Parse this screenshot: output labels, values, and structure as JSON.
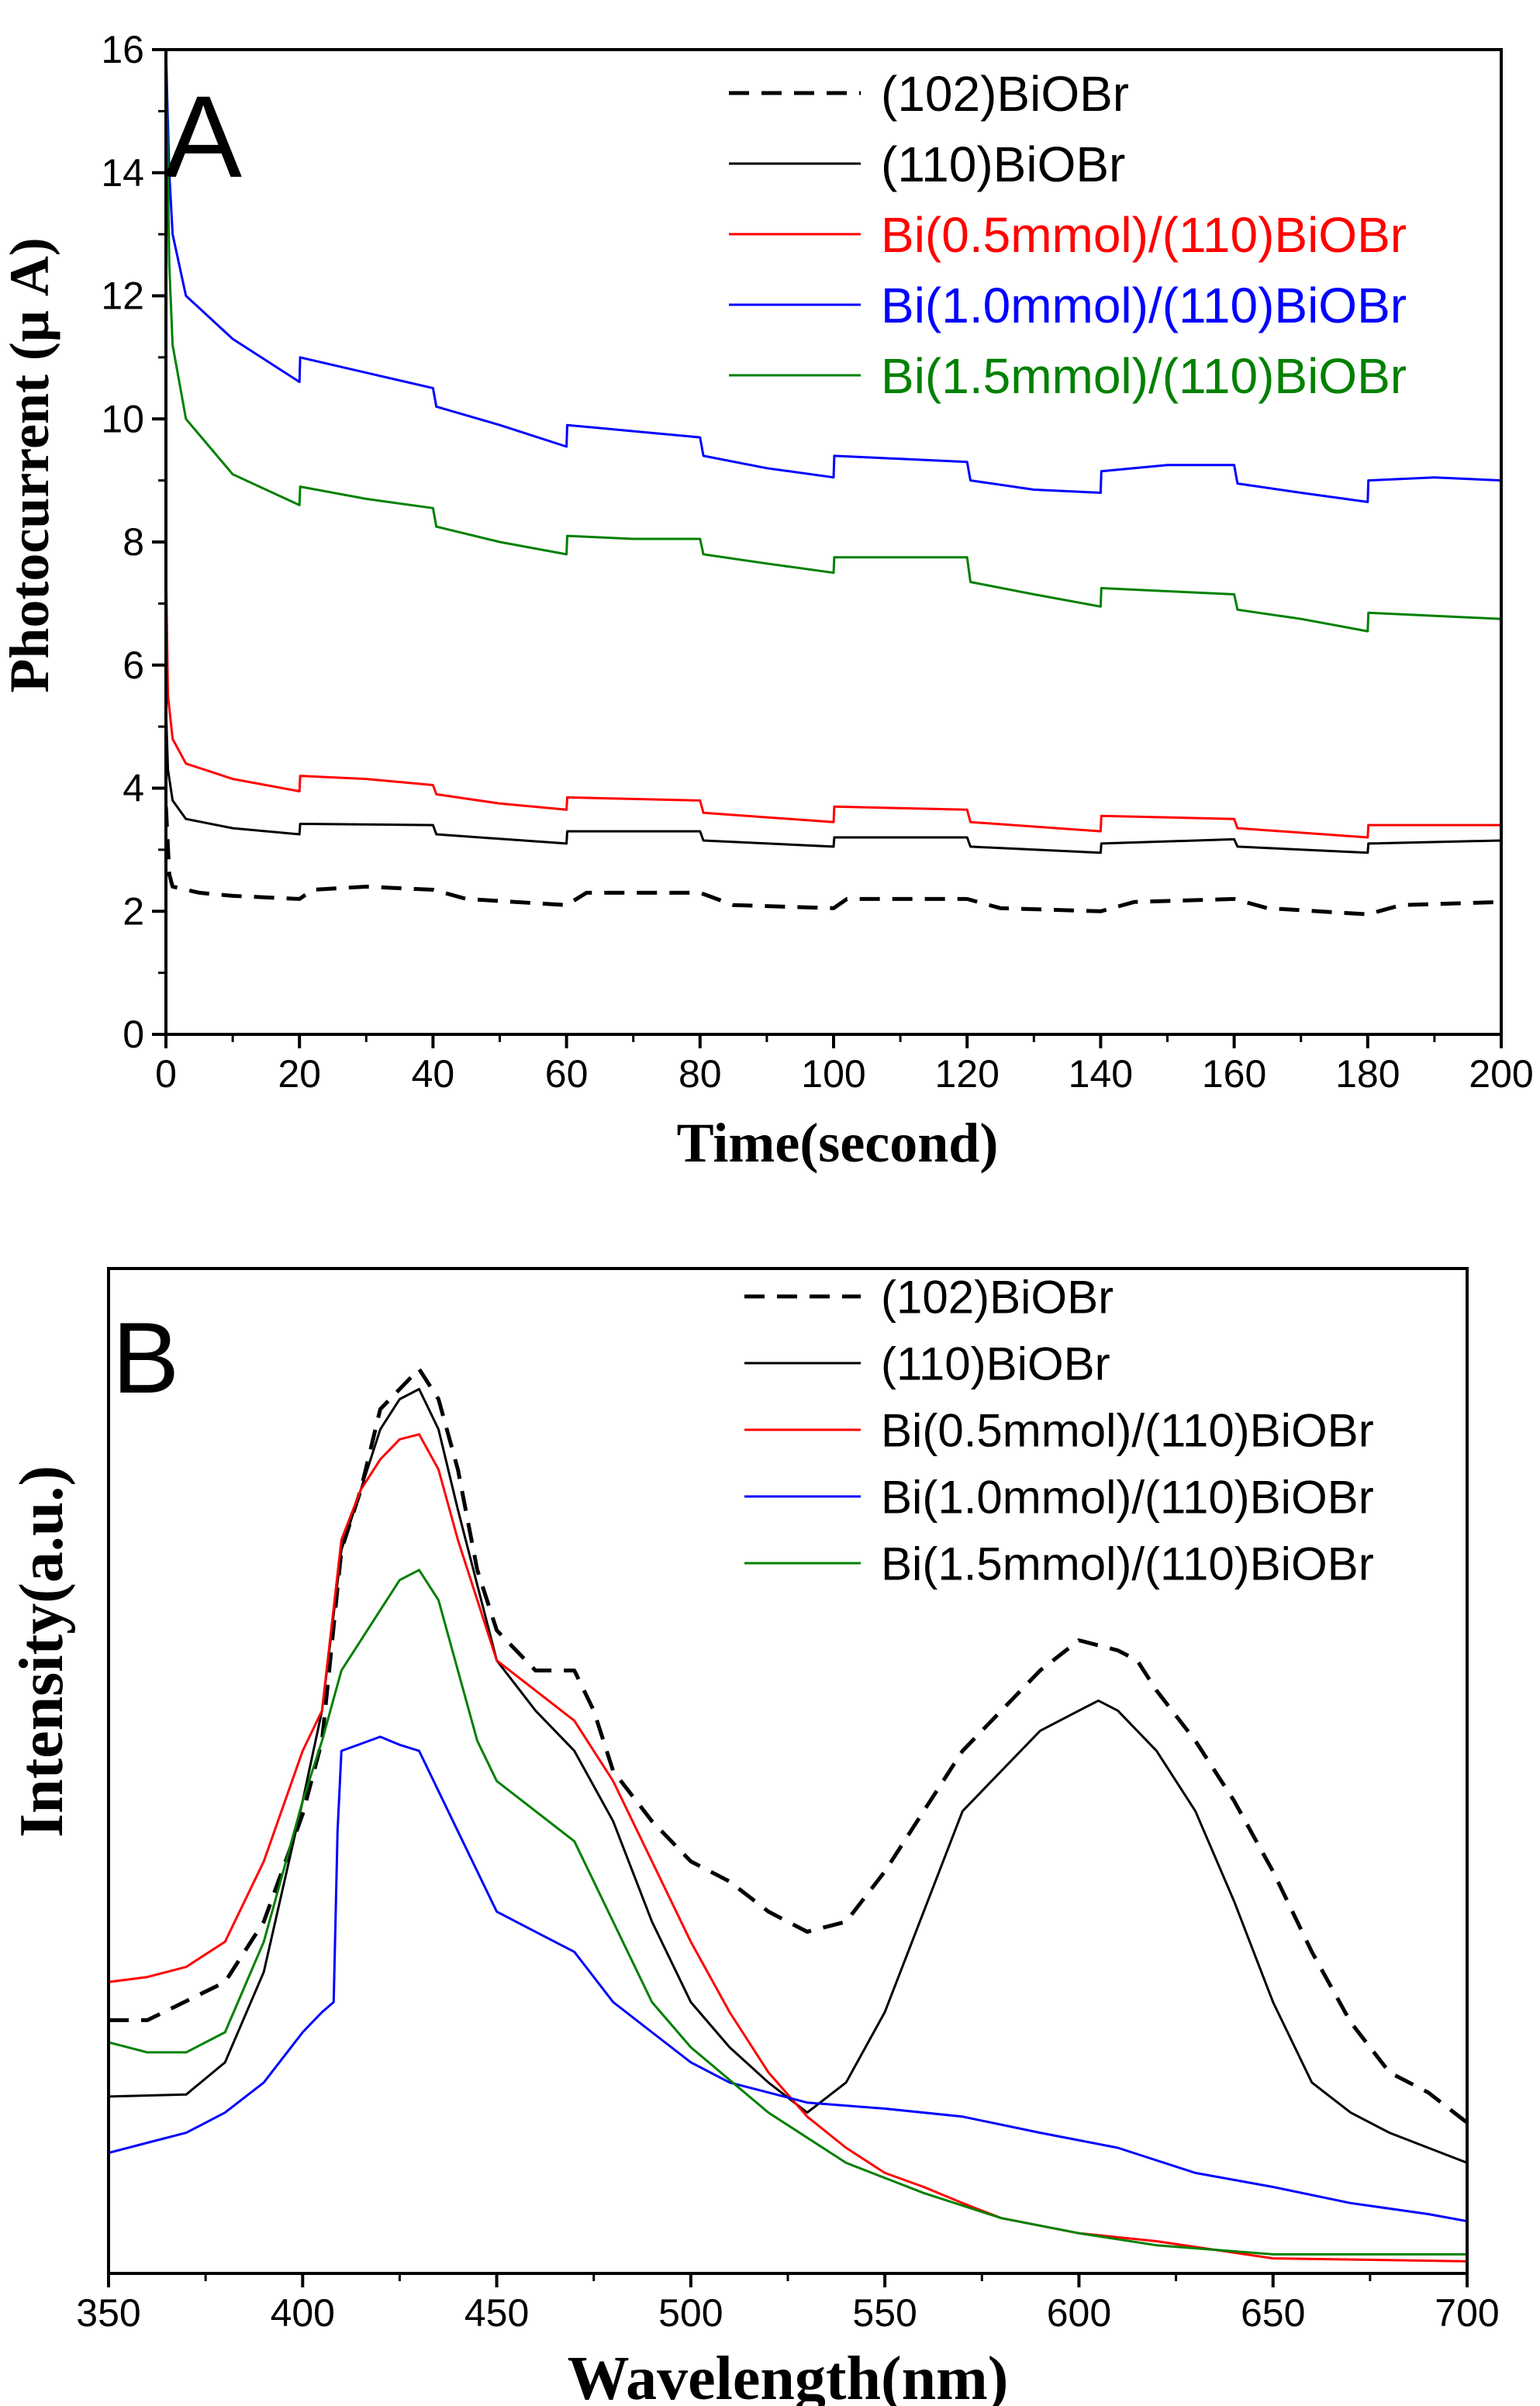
{
  "colors": {
    "black": "#000000",
    "red": "#ff0000",
    "blue": "#0000ff",
    "green": "#008000"
  },
  "chart_data": [
    {
      "panel_label": "A",
      "type": "line",
      "xlabel": "Time(second)",
      "ylabel": "Photocurrent (μ A)",
      "xlim": [
        0,
        200
      ],
      "ylim": [
        0,
        16
      ],
      "xticks": [
        0,
        20,
        40,
        60,
        80,
        100,
        120,
        140,
        160,
        180,
        200
      ],
      "yticks": [
        0,
        2,
        4,
        6,
        8,
        10,
        12,
        14,
        16
      ],
      "grid": false,
      "legend": "top-right",
      "series": [
        {
          "name": "(102)BiOBr",
          "color": "#000000",
          "dash": true,
          "x": [
            0,
            0.5,
            1,
            5,
            10,
            20,
            22,
            30,
            40,
            45,
            60,
            63,
            80,
            85,
            100,
            102,
            120,
            125,
            140,
            145,
            160,
            165,
            180,
            185,
            200
          ],
          "y": [
            3.7,
            2.6,
            2.4,
            2.3,
            2.25,
            2.2,
            2.35,
            2.4,
            2.35,
            2.2,
            2.1,
            2.3,
            2.3,
            2.1,
            2.05,
            2.2,
            2.2,
            2.05,
            2.0,
            2.15,
            2.2,
            2.05,
            1.95,
            2.1,
            2.15
          ]
        },
        {
          "name": "(110)BiOBr",
          "color": "#000000",
          "dash": false,
          "x": [
            0,
            0.3,
            1,
            3,
            10,
            20,
            20.1,
            40,
            40.5,
            60,
            60.1,
            80,
            80.5,
            100,
            100.1,
            120,
            120.5,
            140,
            140.1,
            160,
            160.5,
            180,
            180.1,
            200
          ],
          "y": [
            5.3,
            4.3,
            3.8,
            3.5,
            3.35,
            3.25,
            3.42,
            3.4,
            3.25,
            3.1,
            3.3,
            3.3,
            3.15,
            3.05,
            3.2,
            3.2,
            3.05,
            2.95,
            3.1,
            3.17,
            3.05,
            2.95,
            3.1,
            3.15
          ]
        },
        {
          "name": "Bi(0.5mmol)/(110)BiOBr",
          "color": "#ff0000",
          "dash": false,
          "x": [
            0,
            0.3,
            1,
            3,
            10,
            20,
            20.1,
            30,
            40,
            40.5,
            50,
            60,
            60.1,
            80,
            80.5,
            100,
            100.1,
            120,
            120.5,
            140,
            140.1,
            160,
            160.5,
            180,
            180.1,
            200
          ],
          "y": [
            7.6,
            5.5,
            4.8,
            4.4,
            4.15,
            3.95,
            4.2,
            4.15,
            4.05,
            3.9,
            3.75,
            3.65,
            3.85,
            3.8,
            3.6,
            3.45,
            3.7,
            3.65,
            3.45,
            3.3,
            3.55,
            3.5,
            3.35,
            3.2,
            3.4,
            3.4
          ]
        },
        {
          "name": "Bi(1.0mmol)/(110)BiOBr",
          "color": "#0000ff",
          "dash": false,
          "x": [
            0,
            0.5,
            1,
            3,
            10,
            20,
            20.1,
            30,
            40,
            40.5,
            50,
            60,
            60.1,
            70,
            80,
            80.5,
            90,
            100,
            100.1,
            110,
            120,
            120.5,
            130,
            140,
            140.1,
            150,
            160,
            160.5,
            170,
            180,
            180.1,
            190,
            200
          ],
          "y": [
            16,
            14,
            13,
            12,
            11.3,
            10.6,
            11.0,
            10.75,
            10.5,
            10.2,
            9.9,
            9.55,
            9.9,
            9.8,
            9.7,
            9.4,
            9.2,
            9.05,
            9.4,
            9.35,
            9.3,
            9.0,
            8.85,
            8.8,
            9.15,
            9.25,
            9.25,
            8.95,
            8.8,
            8.65,
            9.0,
            9.05,
            9.0
          ]
        },
        {
          "name": "Bi(1.5mmol)/(110)BiOBr",
          "color": "#008000",
          "dash": false,
          "x": [
            0,
            0.5,
            1,
            3,
            10,
            20,
            20.1,
            30,
            40,
            40.5,
            50,
            60,
            60.1,
            70,
            80,
            80.5,
            90,
            100,
            100.1,
            110,
            120,
            120.5,
            130,
            140,
            140.1,
            150,
            160,
            160.5,
            170,
            180,
            180.1,
            190,
            200
          ],
          "y": [
            16,
            12.5,
            11.2,
            10,
            9.1,
            8.6,
            8.9,
            8.7,
            8.55,
            8.25,
            8.0,
            7.8,
            8.1,
            8.05,
            8.05,
            7.8,
            7.65,
            7.5,
            7.75,
            7.75,
            7.75,
            7.35,
            7.15,
            6.95,
            7.25,
            7.2,
            7.15,
            6.9,
            6.75,
            6.55,
            6.85,
            6.8,
            6.75
          ]
        }
      ]
    },
    {
      "panel_label": "B",
      "type": "line",
      "xlabel": "Wavelength(nm)",
      "ylabel": "Intensity(a.u.)",
      "xlim": [
        350,
        700
      ],
      "ylim": [
        0,
        100
      ],
      "xticks": [
        350,
        400,
        450,
        500,
        550,
        600,
        650,
        700
      ],
      "yticks": [],
      "grid": false,
      "legend": "top-right",
      "series": [
        {
          "name": "(102)BiOBr",
          "color": "#000000",
          "dash": true,
          "x": [
            350,
            360,
            380,
            390,
            400,
            405,
            410,
            415,
            420,
            425,
            430,
            435,
            440,
            445,
            450,
            460,
            470,
            475,
            480,
            490,
            500,
            510,
            520,
            530,
            540,
            550,
            560,
            570,
            580,
            590,
            600,
            610,
            615,
            620,
            630,
            640,
            650,
            660,
            670,
            680,
            690,
            700
          ],
          "y": [
            25.2,
            25.2,
            29,
            35,
            45.7,
            53,
            72,
            78,
            86,
            88,
            90,
            87,
            80,
            70,
            64,
            60,
            60,
            56,
            50,
            45,
            41,
            39,
            36,
            34,
            35,
            40,
            46,
            52,
            56,
            60,
            63,
            62,
            61,
            58,
            53,
            47,
            40,
            32,
            25,
            20,
            18,
            15
          ]
        },
        {
          "name": "(110)BiOBr",
          "color": "#000000",
          "dash": false,
          "x": [
            350,
            370,
            380,
            390,
            400,
            405,
            410,
            420,
            425,
            430,
            435,
            440,
            450,
            460,
            470,
            480,
            490,
            500,
            510,
            520,
            530,
            540,
            550,
            560,
            570,
            580,
            590,
            600,
            605,
            610,
            620,
            630,
            640,
            650,
            660,
            670,
            680,
            690,
            700
          ],
          "y": [
            17.6,
            17.8,
            21,
            30,
            47,
            56,
            72,
            84,
            87,
            88,
            84,
            76,
            61,
            56,
            52,
            45,
            35,
            27,
            22.5,
            19,
            16,
            19,
            26,
            36,
            46,
            50,
            54,
            56,
            57,
            56,
            52,
            46,
            37,
            27,
            19,
            16,
            14,
            12.5,
            11
          ]
        },
        {
          "name": "Bi(0.5mmol)/(110)BiOBr",
          "color": "#ff0000",
          "dash": false,
          "x": [
            350,
            360,
            370,
            380,
            390,
            400,
            405,
            410,
            415,
            420,
            425,
            430,
            435,
            440,
            450,
            460,
            470,
            480,
            490,
            500,
            510,
            520,
            530,
            540,
            550,
            560,
            570,
            580,
            600,
            620,
            650,
            700
          ],
          "y": [
            29,
            29.5,
            30.5,
            33,
            41,
            52,
            56,
            73,
            78,
            81,
            83,
            83.5,
            80,
            73,
            61,
            58,
            55,
            49,
            41,
            33,
            26,
            20,
            15.6,
            12.5,
            10,
            8.6,
            7,
            5.5,
            4,
            3.2,
            1.5,
            1.2
          ]
        },
        {
          "name": "Bi(1.0mmol)/(110)BiOBr",
          "color": "#0000ff",
          "dash": false,
          "x": [
            350,
            360,
            370,
            380,
            390,
            400,
            405,
            408,
            409,
            410,
            420,
            425,
            430,
            440,
            450,
            460,
            470,
            480,
            490,
            500,
            510,
            520,
            530,
            550,
            570,
            590,
            610,
            630,
            650,
            670,
            690,
            700
          ],
          "y": [
            12,
            13,
            14,
            16,
            19,
            24,
            26,
            27,
            44,
            52,
            53.4,
            52.6,
            52,
            44,
            36,
            34,
            32,
            27,
            24,
            21,
            19,
            18,
            17,
            16.4,
            15.6,
            14,
            12.5,
            10,
            8.6,
            7,
            5.9,
            5.2
          ]
        },
        {
          "name": "Bi(1.5mmol)/(110)BiOBr",
          "color": "#008000",
          "dash": false,
          "x": [
            350,
            360,
            370,
            380,
            390,
            400,
            405,
            410,
            420,
            425,
            430,
            435,
            440,
            445,
            450,
            460,
            470,
            480,
            490,
            500,
            520,
            540,
            560,
            580,
            600,
            620,
            650,
            700
          ],
          "y": [
            23,
            22,
            22,
            24,
            33,
            47,
            53,
            60,
            66,
            69,
            70,
            67,
            60,
            53,
            49,
            46,
            43,
            35,
            27,
            22.5,
            16,
            11,
            8,
            5.5,
            4,
            2.8,
            1.9,
            1.9
          ]
        }
      ]
    }
  ]
}
